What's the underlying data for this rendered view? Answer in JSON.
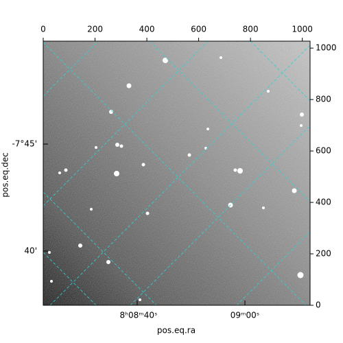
{
  "chart_data": {
    "type": "image",
    "xlabel": "pos.eq.ra",
    "ylabel": "pos.eq.dec",
    "ra_tick_labels": [
      "8ʰ08ᵐ40ˢ",
      "09ᵐ00ˢ"
    ],
    "dec_tick_labels": [
      "-7°45'",
      "40'"
    ],
    "xlim": [
      0,
      1030
    ],
    "xticks": [
      0,
      200,
      400,
      600,
      800,
      1000
    ],
    "ylim": [
      0,
      1027
    ],
    "yticks": [
      0,
      200,
      400,
      600,
      800,
      1000
    ]
  }
}
